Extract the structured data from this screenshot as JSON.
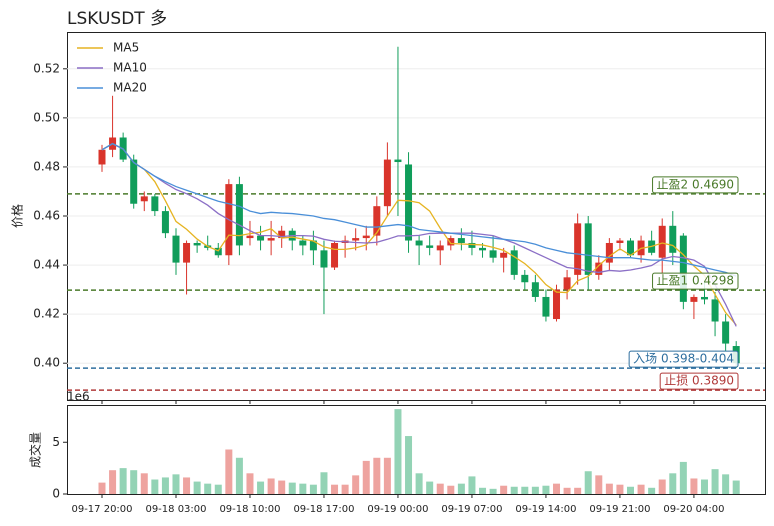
{
  "chart_data": [
    {
      "type": "candlestick",
      "title": "LSKUSDT  多",
      "y_label": "价格",
      "ylim": [
        0.385,
        0.535
      ],
      "yticks": [
        {
          "value": 0.4,
          "label": "0.40"
        },
        0.42,
        0.44,
        0.46,
        0.48,
        {
          "value": 0.5,
          "label": "0.50"
        },
        0.52
      ],
      "grid": true,
      "up_color": "#d9342b",
      "down_color": "#109d5a",
      "open": [
        0.481,
        0.487,
        0.492,
        0.483,
        0.466,
        0.468,
        0.462,
        0.452,
        0.441,
        0.449,
        0.448,
        0.447,
        0.444,
        0.473,
        0.451,
        0.452,
        0.45,
        0.451,
        0.454,
        0.45,
        0.45,
        0.446,
        0.439,
        0.449,
        0.45,
        0.451,
        0.452,
        0.464,
        0.483,
        0.481,
        0.45,
        0.448,
        0.446,
        0.448,
        0.451,
        0.449,
        0.447,
        0.446,
        0.443,
        0.446,
        0.436,
        0.433,
        0.427,
        0.418,
        0.43,
        0.436,
        0.457,
        0.436,
        0.441,
        0.449,
        0.45,
        0.444,
        0.45,
        0.443,
        0.456,
        0.452,
        0.425,
        0.427,
        0.426,
        0.417,
        0.407
      ],
      "high": [
        0.489,
        0.509,
        0.494,
        0.485,
        0.47,
        0.469,
        0.464,
        0.455,
        0.45,
        0.45,
        0.452,
        0.449,
        0.475,
        0.476,
        0.458,
        0.456,
        0.458,
        0.456,
        0.455,
        0.452,
        0.454,
        0.45,
        0.45,
        0.452,
        0.455,
        0.456,
        0.468,
        0.49,
        0.529,
        0.486,
        0.452,
        0.452,
        0.45,
        0.452,
        0.455,
        0.454,
        0.449,
        0.452,
        0.447,
        0.448,
        0.438,
        0.436,
        0.43,
        0.432,
        0.438,
        0.461,
        0.46,
        0.444,
        0.451,
        0.451,
        0.451,
        0.452,
        0.454,
        0.459,
        0.462,
        0.453,
        0.428,
        0.433,
        0.429,
        0.42,
        0.409
      ],
      "low": [
        0.478,
        0.484,
        0.482,
        0.463,
        0.462,
        0.46,
        0.451,
        0.436,
        0.428,
        0.445,
        0.446,
        0.443,
        0.44,
        0.444,
        0.448,
        0.446,
        0.444,
        0.447,
        0.446,
        0.444,
        0.44,
        0.42,
        0.438,
        0.443,
        0.446,
        0.446,
        0.448,
        0.46,
        0.46,
        0.445,
        0.44,
        0.444,
        0.44,
        0.446,
        0.446,
        0.444,
        0.443,
        0.441,
        0.437,
        0.434,
        0.43,
        0.425,
        0.417,
        0.417,
        0.426,
        0.432,
        0.43,
        0.434,
        0.438,
        0.446,
        0.443,
        0.441,
        0.444,
        0.436,
        0.44,
        0.422,
        0.418,
        0.424,
        0.411,
        0.405,
        0.398
      ],
      "close": [
        0.487,
        0.492,
        0.483,
        0.465,
        0.468,
        0.462,
        0.453,
        0.441,
        0.449,
        0.448,
        0.447,
        0.444,
        0.473,
        0.448,
        0.452,
        0.45,
        0.451,
        0.454,
        0.45,
        0.448,
        0.446,
        0.439,
        0.449,
        0.45,
        0.451,
        0.452,
        0.464,
        0.483,
        0.482,
        0.45,
        0.448,
        0.447,
        0.448,
        0.451,
        0.449,
        0.447,
        0.446,
        0.443,
        0.445,
        0.436,
        0.433,
        0.427,
        0.419,
        0.43,
        0.435,
        0.457,
        0.436,
        0.441,
        0.449,
        0.45,
        0.444,
        0.45,
        0.445,
        0.456,
        0.445,
        0.425,
        0.427,
        0.426,
        0.417,
        0.408,
        0.4
      ],
      "series": [
        {
          "name": "MA5",
          "color": "#e6b422",
          "values": [
            0.487,
            0.4895,
            0.4873,
            0.4818,
            0.479,
            0.474,
            0.4662,
            0.4578,
            0.4546,
            0.4506,
            0.4476,
            0.4458,
            0.4522,
            0.452,
            0.4528,
            0.4534,
            0.4548,
            0.451,
            0.4514,
            0.4506,
            0.4498,
            0.4474,
            0.4464,
            0.4464,
            0.447,
            0.4482,
            0.4532,
            0.46,
            0.4664,
            0.4662,
            0.4654,
            0.462,
            0.455,
            0.4488,
            0.4486,
            0.4484,
            0.4482,
            0.4472,
            0.446,
            0.4434,
            0.4406,
            0.4368,
            0.432,
            0.429,
            0.4288,
            0.4336,
            0.4354,
            0.4398,
            0.4436,
            0.4466,
            0.444,
            0.4468,
            0.4476,
            0.449,
            0.448,
            0.4442,
            0.4396,
            0.4358,
            0.428,
            0.4206,
            0.4156
          ]
        },
        {
          "name": "MA10",
          "color": "#8b6fc6",
          "values": [
            0.487,
            0.4895,
            0.4873,
            0.4818,
            0.479,
            0.4762,
            0.4733,
            0.4708,
            0.4691,
            0.467,
            0.4644,
            0.461,
            0.4585,
            0.4563,
            0.454,
            0.452,
            0.452,
            0.4516,
            0.452,
            0.452,
            0.4518,
            0.4505,
            0.4497,
            0.4495,
            0.4492,
            0.449,
            0.4493,
            0.4505,
            0.4519,
            0.4519,
            0.4521,
            0.4529,
            0.453,
            0.453,
            0.453,
            0.453,
            0.4525,
            0.452,
            0.4505,
            0.449,
            0.447,
            0.445,
            0.443,
            0.441,
            0.439,
            0.4385,
            0.4375,
            0.437,
            0.4378,
            0.4375,
            0.438,
            0.4388,
            0.4398,
            0.4425,
            0.4435,
            0.443,
            0.442,
            0.4395,
            0.432,
            0.424,
            0.415
          ]
        },
        {
          "name": "MA20",
          "color": "#4a8fd8",
          "values": [
            0.487,
            0.4895,
            0.4873,
            0.4818,
            0.479,
            0.4762,
            0.474,
            0.472,
            0.4705,
            0.469,
            0.4675,
            0.466,
            0.465,
            0.464,
            0.462,
            0.461,
            0.4615,
            0.4612,
            0.461,
            0.4605,
            0.46,
            0.459,
            0.4585,
            0.4575,
            0.4565,
            0.4555,
            0.4555,
            0.456,
            0.4565,
            0.456,
            0.4545,
            0.454,
            0.4535,
            0.453,
            0.4525,
            0.452,
            0.4515,
            0.451,
            0.4505,
            0.45,
            0.4495,
            0.4485,
            0.447,
            0.446,
            0.445,
            0.4445,
            0.444,
            0.4435,
            0.443,
            0.443,
            0.443,
            0.4425,
            0.442,
            0.442,
            0.4415,
            0.441,
            0.44,
            0.439,
            0.438,
            0.437,
            0.4355
          ]
        }
      ],
      "legend": "upper left",
      "levels": [
        {
          "label": "止盈2 0.4690",
          "value": 0.469,
          "color": "#4a7a2a"
        },
        {
          "label": "止盈1 0.4298",
          "value": 0.4298,
          "color": "#4a7a2a"
        },
        {
          "label": "入场 0.398-0.404",
          "value": 0.398,
          "color": "#2f6f9f"
        },
        {
          "label": "止损 0.3890",
          "value": 0.389,
          "color": "#b03a3a"
        }
      ]
    },
    {
      "type": "bar",
      "y_label": "成交量",
      "offset_label": "1e6",
      "ylim": [
        0,
        8.6
      ],
      "yticks": [
        0,
        5
      ],
      "categories": [
        "09-17 20:00",
        null,
        null,
        null,
        null,
        null,
        null,
        "09-18 03:00",
        null,
        null,
        null,
        null,
        null,
        null,
        "09-18 10:00",
        null,
        null,
        null,
        null,
        null,
        null,
        "09-18 17:00",
        null,
        null,
        null,
        null,
        null,
        null,
        "09-19 00:00",
        null,
        null,
        null,
        null,
        null,
        null,
        "09-19 07:00",
        null,
        null,
        null,
        null,
        null,
        null,
        "09-19 14:00",
        null,
        null,
        null,
        null,
        null,
        null,
        "09-19 21:00",
        null,
        null,
        null,
        null,
        null,
        null,
        "09-20 04:00",
        null,
        null,
        null,
        null
      ],
      "values": [
        1.1,
        2.3,
        2.5,
        2.3,
        2.0,
        1.4,
        1.6,
        1.9,
        1.6,
        1.2,
        1.0,
        0.9,
        4.3,
        3.5,
        2.0,
        1.2,
        1.5,
        1.3,
        1.1,
        1.0,
        0.9,
        2.1,
        0.9,
        0.9,
        1.8,
        3.2,
        3.5,
        3.5,
        8.2,
        5.6,
        2.0,
        1.2,
        1.0,
        0.8,
        1.0,
        1.7,
        0.6,
        0.5,
        0.8,
        0.7,
        0.7,
        0.7,
        0.8,
        1.0,
        0.6,
        0.6,
        2.2,
        1.8,
        1.0,
        0.9,
        0.7,
        0.9,
        0.6,
        1.4,
        2.0,
        3.1,
        1.5,
        1.4,
        2.4,
        1.9,
        1.3
      ]
    }
  ]
}
